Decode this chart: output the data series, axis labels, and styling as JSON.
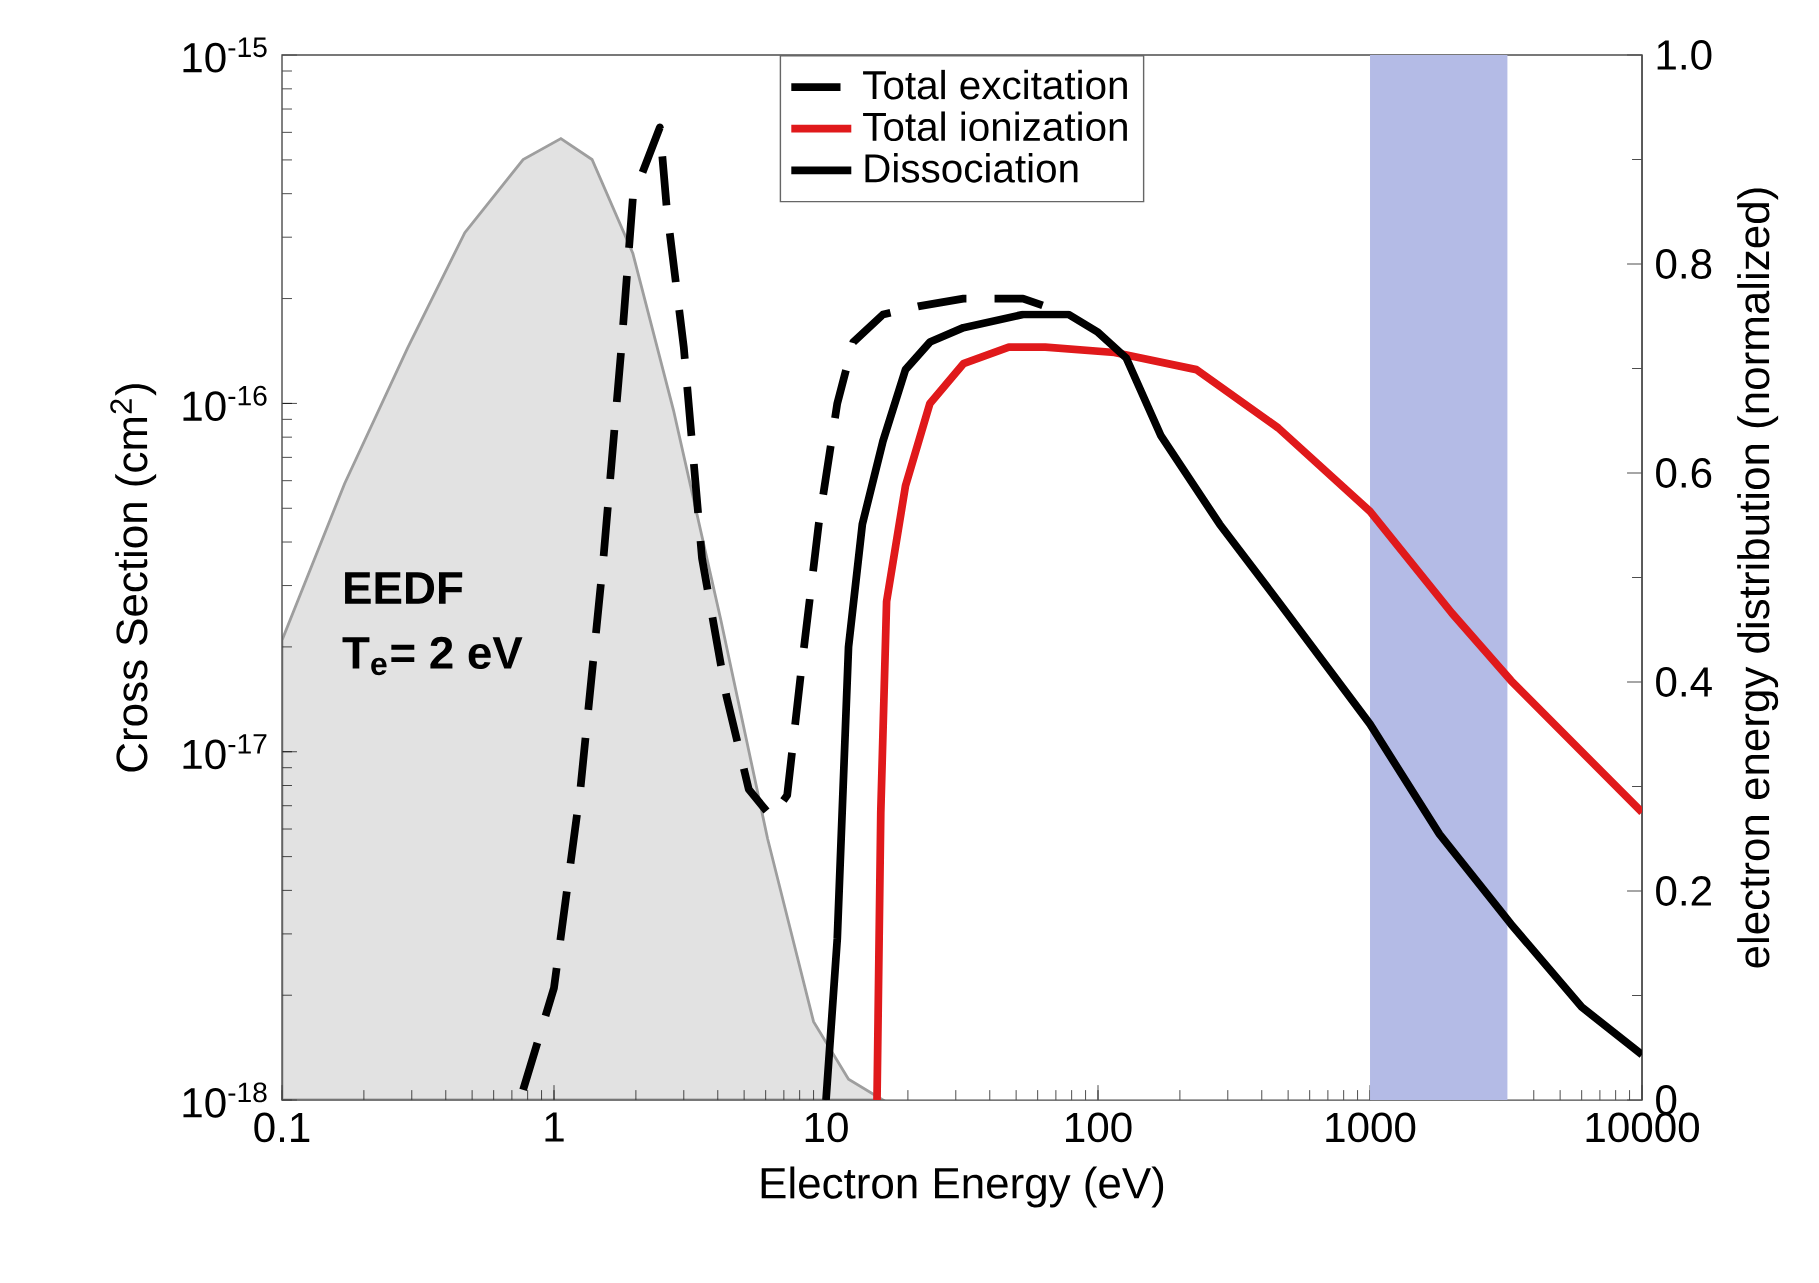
{
  "chart_data": {
    "type": "line",
    "xlabel": "Electron Energy (eV)",
    "ylabel": "Cross Section (cm$^{2}$)",
    "y2label": "electron energy distribution (normalized)",
    "log": "xy",
    "xlim": [
      0.1,
      10000
    ],
    "xticks": [
      0.1,
      1,
      10,
      100,
      1000,
      10000
    ],
    "ylim": [
      1e-18,
      1e-15
    ],
    "yticks": [
      {
        "value": 1e-18,
        "label": "10$^{-18}$"
      },
      {
        "value": 1e-17,
        "label": "10$^{-17}$"
      },
      {
        "value": 1e-16,
        "label": "10$^{-16}$"
      },
      {
        "value": 1e-15,
        "label": "10$^{-15}$"
      }
    ],
    "y2lim": [
      0,
      1
    ],
    "y2ticks": [
      0,
      0.2,
      0.4,
      0.6,
      0.8,
      {
        "value": 1,
        "label": "1.0"
      }
    ],
    "legend": "top",
    "marker": "none",
    "series": [
      {
        "name": "Total excitation",
        "color": "#000000",
        "line_style": "dashed",
        "x": [
          0.77,
          1.0,
          1.25,
          1.52,
          1.77,
          1.95,
          2.45,
          2.6,
          3.0,
          3.5,
          4.3,
          5.2,
          6.3,
          7.2,
          8.1,
          9.4,
          11.0,
          12.6,
          16.2,
          21.8,
          32,
          53,
          78
        ],
        "values": [
          1.07e-18,
          2.1e-18,
          7.8e-18,
          3.6e-17,
          1.45e-16,
          3.9e-16,
          6.2e-16,
          3.6e-16,
          1.45e-16,
          3.6e-17,
          1.45e-17,
          7.8e-18,
          6.5e-18,
          7.5e-18,
          1.7e-17,
          4.5e-17,
          1e-16,
          1.5e-16,
          1.8e-16,
          1.9e-16,
          2e-16,
          2e-16,
          1.8e-16
        ]
      },
      {
        "name": "Total ionization",
        "color": "#e0191b",
        "x": [
          15.4,
          15.9,
          16.7,
          19.6,
          24.1,
          32,
          47,
          64,
          115,
          230,
          460,
          1000,
          2000,
          3300,
          10000
        ],
        "values": [
          1e-18,
          6.7e-18,
          2.7e-17,
          5.8e-17,
          1e-16,
          1.3e-16,
          1.45e-16,
          1.45e-16,
          1.4e-16,
          1.25e-16,
          8.5e-17,
          4.9e-17,
          2.5e-17,
          1.6e-17,
          6.7e-18
        ]
      },
      {
        "name": "Dissociation",
        "color": "#000000",
        "x": [
          10,
          11.0,
          12.1,
          13.6,
          16.2,
          19.6,
          24.1,
          32,
          53,
          78,
          100,
          127,
          170,
          280,
          460,
          1000,
          1800,
          3300,
          6000,
          10000
        ],
        "values": [
          1e-18,
          2.9e-18,
          2e-17,
          4.5e-17,
          7.8e-17,
          1.25e-16,
          1.5e-16,
          1.65e-16,
          1.8e-16,
          1.8e-16,
          1.6e-16,
          1.35e-16,
          8.1e-17,
          4.5e-17,
          2.7e-17,
          1.2e-17,
          5.8e-18,
          3.2e-18,
          1.85e-18,
          1.35e-18
        ]
      },
      {
        "type": "area",
        "axis": "y2",
        "color": "#e2e2e2",
        "x": [
          0.1,
          0.17,
          0.29,
          0.47,
          0.77,
          1.06,
          1.38,
          1.95,
          2.75,
          4.1,
          6.1,
          9.0,
          12.1,
          16.2
        ],
        "values": [
          0.44,
          0.59,
          0.72,
          0.83,
          0.9,
          0.92,
          0.9,
          0.81,
          0.66,
          0.46,
          0.25,
          0.075,
          0.02,
          0
        ]
      }
    ],
    "bands": [
      {
        "axis": "x",
        "from": 1000,
        "to": 3200,
        "color": "#b4bbe6"
      }
    ],
    "annotations": [
      "EEDF",
      "T$_{e}$= 2 eV"
    ]
  }
}
